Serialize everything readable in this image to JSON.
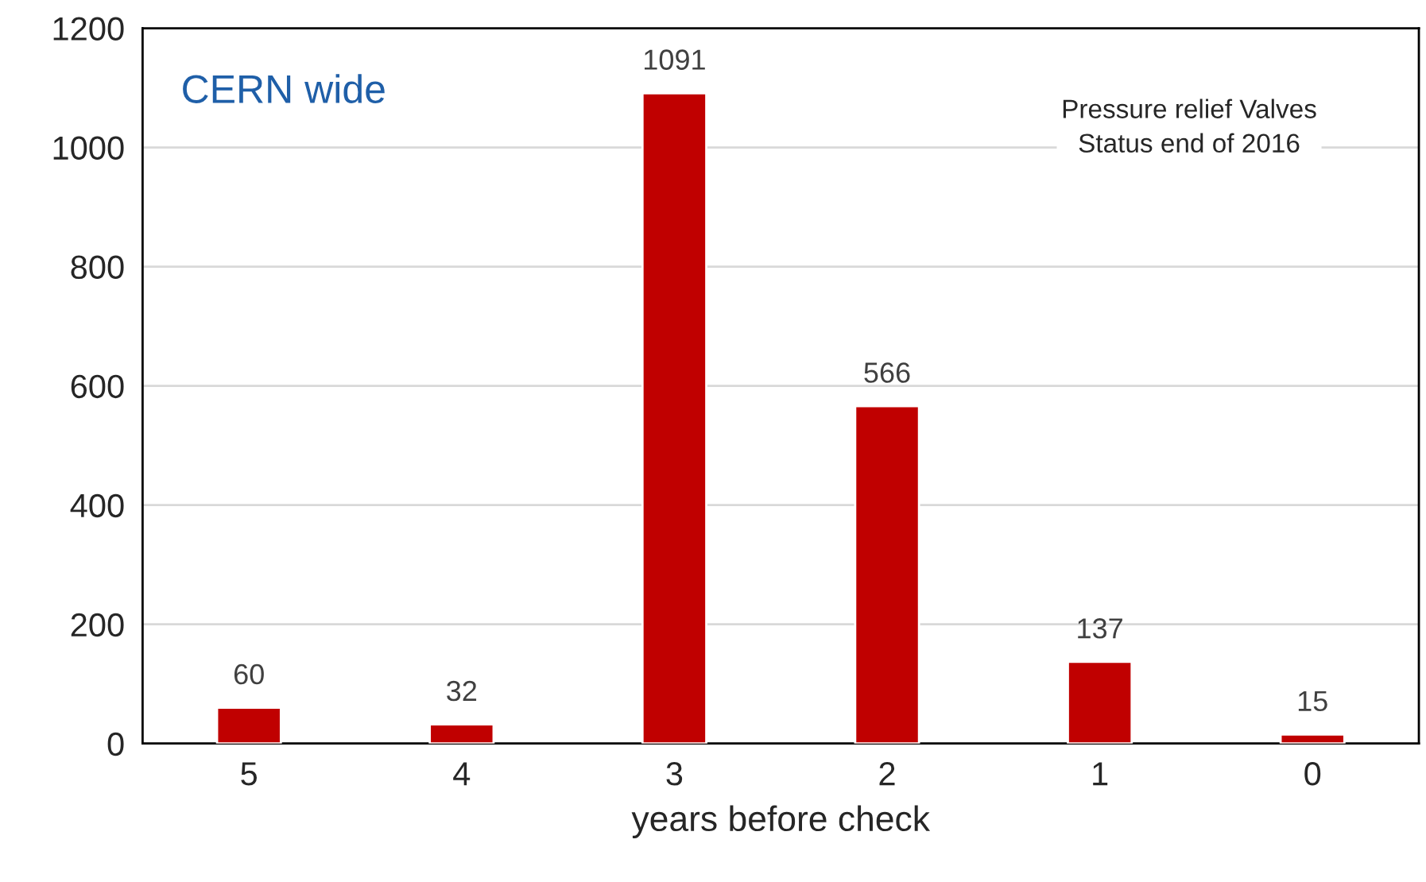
{
  "chart_data": {
    "type": "bar",
    "xlabel": "years before check",
    "categories": [
      "5",
      "4",
      "3",
      "2",
      "1",
      "0"
    ],
    "values": [
      60,
      32,
      1091,
      566,
      137,
      15
    ],
    "color": "#c00000",
    "ylim": [
      0,
      1200
    ],
    "yticks": [
      0,
      200,
      400,
      600,
      800,
      1000,
      1200
    ],
    "grid": "y",
    "data_labels": true,
    "legend": false,
    "annotations": [
      "CERN wide",
      "Pressure relief Valves\nStatus end of 2016"
    ]
  }
}
